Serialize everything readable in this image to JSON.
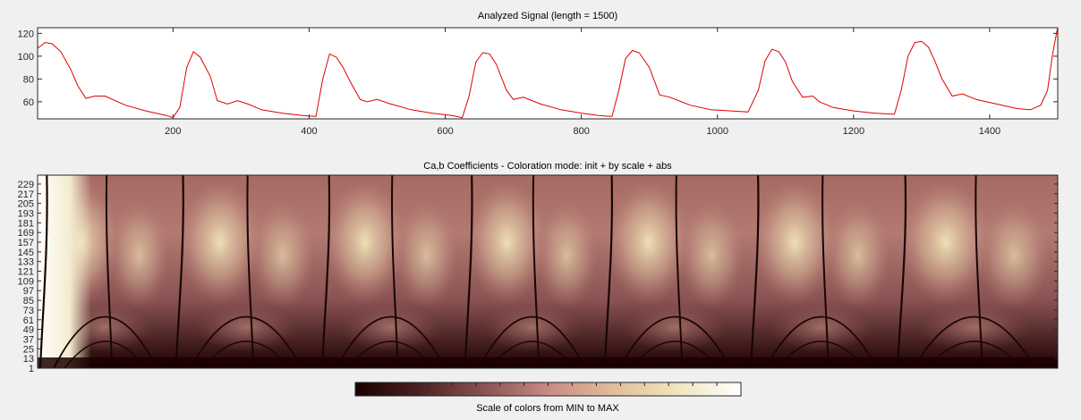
{
  "chart_data": [
    {
      "type": "line",
      "title": "Analyzed Signal (length = 1500)",
      "xlim": [
        1,
        1500
      ],
      "ylim": [
        45,
        125
      ],
      "x_ticks": [
        200,
        400,
        600,
        800,
        1000,
        1200,
        1400
      ],
      "y_ticks": [
        60,
        80,
        100,
        120
      ],
      "series_color": "#e00000",
      "series": [
        {
          "x": [
            1,
            12,
            22,
            35,
            50,
            60,
            72,
            85,
            100,
            130,
            160,
            190,
            200,
            210,
            220,
            230,
            240,
            255,
            265,
            280,
            295,
            310,
            330,
            360,
            390,
            410,
            420,
            430,
            440,
            450,
            460,
            475,
            485,
            500,
            520,
            550,
            580,
            610,
            625,
            635,
            645,
            655,
            665,
            675,
            690,
            700,
            715,
            740,
            770,
            800,
            825,
            845,
            855,
            865,
            875,
            885,
            900,
            915,
            930,
            960,
            990,
            1020,
            1045,
            1060,
            1070,
            1080,
            1090,
            1100,
            1110,
            1125,
            1140,
            1150,
            1170,
            1200,
            1230,
            1260,
            1270,
            1280,
            1290,
            1300,
            1310,
            1320,
            1330,
            1345,
            1360,
            1380,
            1410,
            1440,
            1460,
            1475,
            1485,
            1492,
            1500
          ],
          "y": [
            107,
            112,
            111,
            104,
            88,
            74,
            63,
            65,
            65,
            57,
            52,
            48,
            46,
            55,
            90,
            104,
            99,
            82,
            61,
            58,
            61,
            58,
            53,
            50,
            48,
            47,
            80,
            102,
            99,
            90,
            78,
            62,
            60,
            62,
            58,
            53,
            50,
            48,
            46,
            65,
            95,
            103,
            102,
            93,
            70,
            62,
            64,
            58,
            53,
            50,
            48,
            47,
            70,
            98,
            105,
            103,
            90,
            66,
            64,
            57,
            53,
            52,
            51,
            70,
            96,
            106,
            104,
            95,
            78,
            64,
            65,
            60,
            55,
            52,
            50,
            49,
            70,
            100,
            112,
            113,
            108,
            95,
            80,
            65,
            67,
            62,
            58,
            54,
            53,
            57,
            70,
            100,
            126
          ]
        }
      ]
    },
    {
      "type": "heatmap",
      "title": "Ca,b Coefficients - Coloration mode: init + by scale + abs",
      "xlim": [
        1,
        1500
      ],
      "y_ticks": [
        1,
        13,
        25,
        37,
        49,
        61,
        73,
        85,
        97,
        109,
        121,
        133,
        145,
        157,
        169,
        181,
        193,
        205,
        217,
        229
      ],
      "colormap": [
        "#1a0000",
        "#4b2222",
        "#8a5252",
        "#c88a85",
        "#dfbd9a",
        "#efe5bd",
        "#ffffff"
      ],
      "beat_positions": [
        1,
        200,
        415,
        625,
        830,
        1045,
        1260,
        1495
      ]
    }
  ],
  "colorbar": {
    "label": "Scale of colors from MIN to MAX",
    "n_ticks": 16,
    "colors": [
      "#1a0000",
      "#4b2222",
      "#8a5252",
      "#c88a85",
      "#dfbd9a",
      "#efe5bd",
      "#ffffff"
    ]
  }
}
